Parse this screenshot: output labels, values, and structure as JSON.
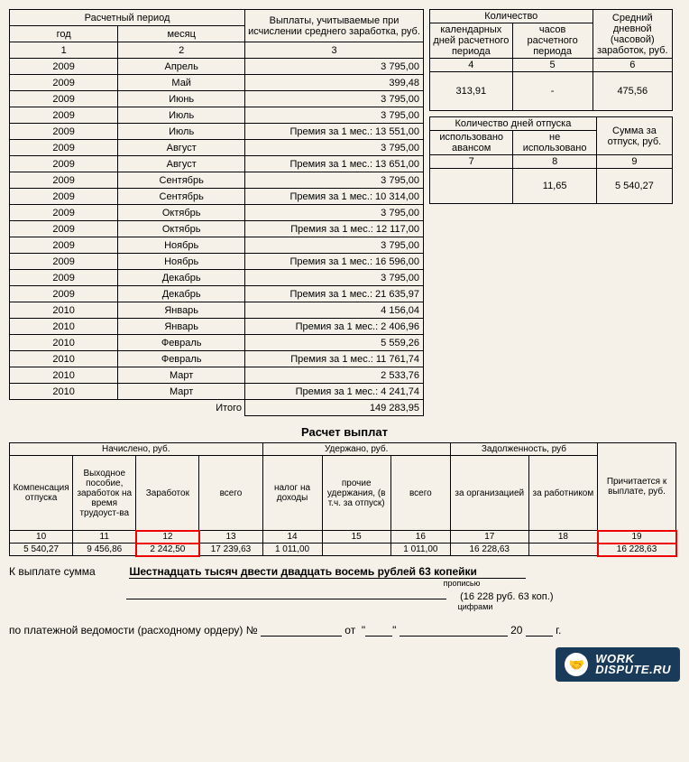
{
  "period_table": {
    "header_group": "Расчетный период",
    "col_year": "год",
    "col_month": "месяц",
    "col_pay": "Выплаты, учитываемые при исчислении среднего заработка, руб.",
    "num1": "1",
    "num2": "2",
    "num3": "3",
    "rows": [
      {
        "y": "2009",
        "m": "Апрель",
        "v": "3 795,00"
      },
      {
        "y": "2009",
        "m": "Май",
        "v": "399,48"
      },
      {
        "y": "2009",
        "m": "Июнь",
        "v": "3 795,00"
      },
      {
        "y": "2009",
        "m": "Июль",
        "v": "3 795,00"
      },
      {
        "y": "2009",
        "m": "Июль",
        "v": "Премия за 1 мес.: 13 551,00"
      },
      {
        "y": "2009",
        "m": "Август",
        "v": "3 795,00"
      },
      {
        "y": "2009",
        "m": "Август",
        "v": "Премия за 1 мес.: 13 651,00"
      },
      {
        "y": "2009",
        "m": "Сентябрь",
        "v": "3 795,00"
      },
      {
        "y": "2009",
        "m": "Сентябрь",
        "v": "Премия за 1 мес.: 10 314,00"
      },
      {
        "y": "2009",
        "m": "Октябрь",
        "v": "3 795,00"
      },
      {
        "y": "2009",
        "m": "Октябрь",
        "v": "Премия за 1 мес.: 12 117,00"
      },
      {
        "y": "2009",
        "m": "Ноябрь",
        "v": "3 795,00"
      },
      {
        "y": "2009",
        "m": "Ноябрь",
        "v": "Премия за 1 мес.: 16 596,00"
      },
      {
        "y": "2009",
        "m": "Декабрь",
        "v": "3 795,00"
      },
      {
        "y": "2009",
        "m": "Декабрь",
        "v": "Премия за 1 мес.: 21 635,97"
      },
      {
        "y": "2010",
        "m": "Январь",
        "v": "4 156,04"
      },
      {
        "y": "2010",
        "m": "Январь",
        "v": "Премия за 1 мес.: 2 406,96"
      },
      {
        "y": "2010",
        "m": "Февраль",
        "v": "5 559,26"
      },
      {
        "y": "2010",
        "m": "Февраль",
        "v": "Премия за 1 мес.: 11 761,74"
      },
      {
        "y": "2010",
        "m": "Март",
        "v": "2 533,76"
      },
      {
        "y": "2010",
        "m": "Март",
        "v": "Премия за 1 мес.: 4 241,74"
      }
    ],
    "total_lbl": "Итого",
    "total_val": "149 283,95"
  },
  "qty_table": {
    "group": "Количество",
    "col4": "календарных дней расчетного периода",
    "col5": "часов расчетного периода",
    "col6_top": "Средний дневной (часовой) заработок, руб.",
    "n4": "4",
    "n5": "5",
    "n6": "6",
    "v4": "313,91",
    "v5": "-",
    "v6": "475,56"
  },
  "leave_table": {
    "group": "Количество дней отпуска",
    "col7": "использовано авансом",
    "col8": "не использовано",
    "col9": "Сумма за отпуск, руб.",
    "n7": "7",
    "n8": "8",
    "n9": "9",
    "v7": "",
    "v8": "11,65",
    "v9": "5 540,27"
  },
  "calc_title": "Расчет выплат",
  "calc_table": {
    "g1": "Начислено, руб.",
    "g2": "Удержано, руб.",
    "g3": "Задолженность, руб",
    "g4": "Причитается к выплате, руб.",
    "c10": "Компенсация отпуска",
    "c11": "Выходное пособие, заработок на время трудоуст-ва",
    "c12": "Заработок",
    "c13": "всего",
    "c14": "налог на доходы",
    "c15": "прочие удержания, (в т.ч. за отпуск)",
    "c16": "всего",
    "c17": "за организацией",
    "c18": "за работником",
    "n10": "10",
    "n11": "11",
    "n12": "12",
    "n13": "13",
    "n14": "14",
    "n15": "15",
    "n16": "16",
    "n17": "17",
    "n18": "18",
    "n19": "19",
    "v10": "5 540,27",
    "v11": "9 456,86",
    "v12": "2 242,50",
    "v13": "17 239,63",
    "v14": "1 011,00",
    "v15": "",
    "v16": "1 011,00",
    "v17": "16 228,63",
    "v18": "",
    "v19": "16 228,63"
  },
  "sum": {
    "lbl": "К выплате сумма",
    "words": "Шестнадцать тысяч двести двадцать восемь рублей 63 копейки",
    "sub1": "прописью",
    "digits": "(16 228 руб. 63 коп.)",
    "sub2": "цифрами"
  },
  "pay_line": {
    "p1": "по платежной ведомости (расходному ордеру) №",
    "p2": "от",
    "p3": "20",
    "p4": "г."
  },
  "logo": {
    "line1": "WORK",
    "line2": "DISPUTE.RU"
  }
}
